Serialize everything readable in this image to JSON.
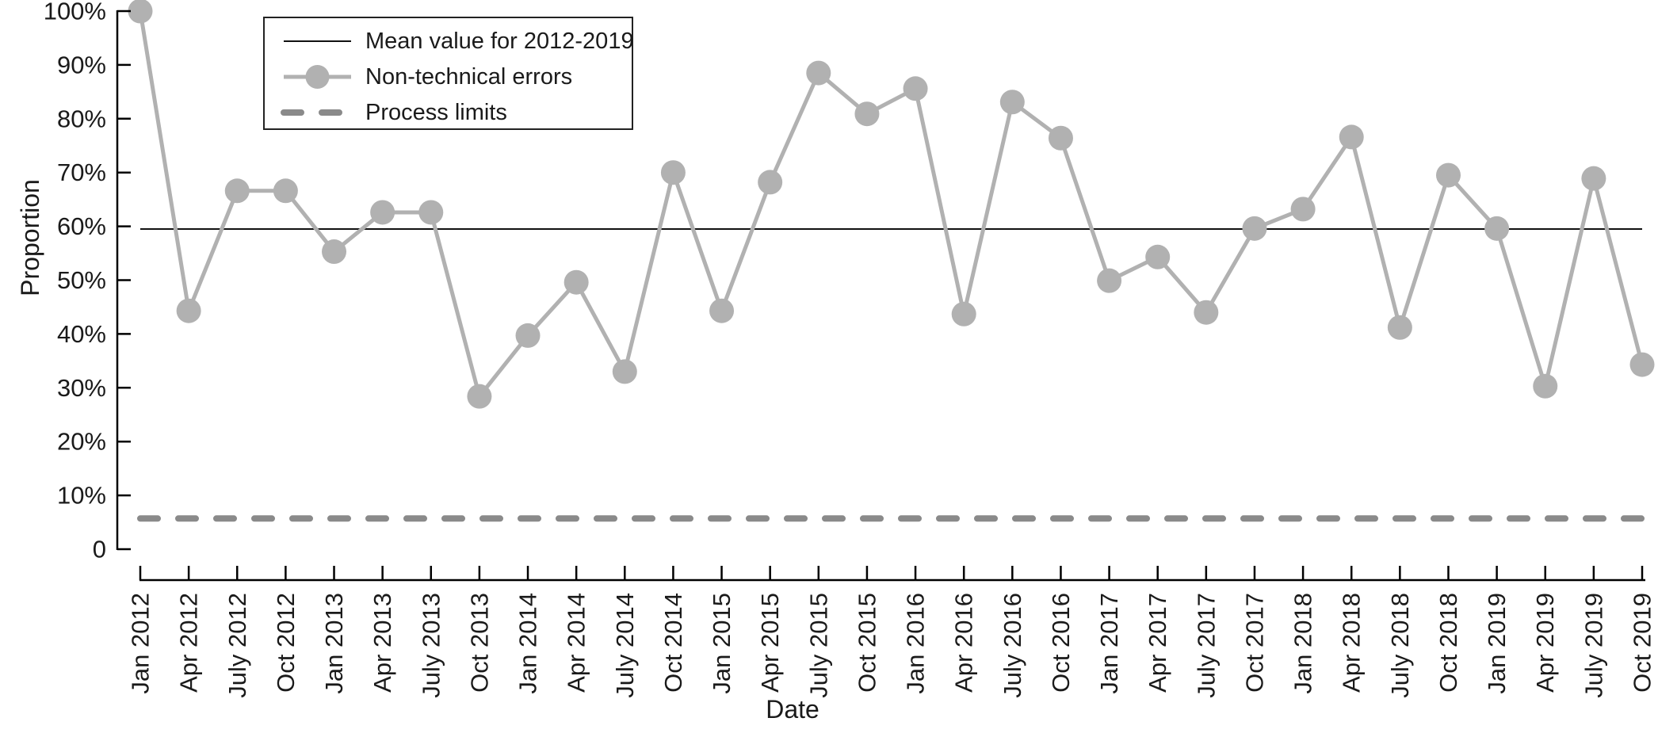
{
  "chart_data": {
    "type": "line",
    "title": "",
    "xlabel": "Date",
    "ylabel": "Proportion",
    "ylim": [
      0,
      100
    ],
    "ytick_values": [
      0,
      10,
      20,
      30,
      40,
      50,
      60,
      70,
      80,
      90,
      100
    ],
    "ytick_labels": [
      "0",
      "10%",
      "20%",
      "30%",
      "40%",
      "50%",
      "60%",
      "70%",
      "80%",
      "90%",
      "100%"
    ],
    "grid": false,
    "x": [
      "Jan 2012",
      "Apr 2012",
      "July 2012",
      "Oct 2012",
      "Jan 2013",
      "Apr 2013",
      "July 2013",
      "Oct 2013",
      "Jan 2014",
      "Apr 2014",
      "July 2014",
      "Oct 2014",
      "Jan 2015",
      "Apr 2015",
      "July 2015",
      "Oct 2015",
      "Jan 2016",
      "Apr 2016",
      "July 2016",
      "Oct 2016",
      "Jan 2017",
      "Apr 2017",
      "July 2017",
      "Oct 2017",
      "Jan 2018",
      "Apr 2018",
      "July 2018",
      "Oct 2018",
      "Jan 2019",
      "Apr 2019",
      "July 2019",
      "Oct 2019"
    ],
    "series": [
      {
        "name": "Mean value for 2012-2019",
        "kind": "constant-line",
        "value": 59.5
      },
      {
        "name": "Non-technical errors",
        "kind": "line-with-markers",
        "values": [
          100,
          44.3,
          66.6,
          66.6,
          55.3,
          62.6,
          62.6,
          28.4,
          39.7,
          49.6,
          33.0,
          70.0,
          44.3,
          68.2,
          88.5,
          80.9,
          85.6,
          43.7,
          83.1,
          76.4,
          49.9,
          54.3,
          44.0,
          59.6,
          63.2,
          76.6,
          41.2,
          69.5,
          59.6,
          30.3,
          68.9,
          34.3
        ]
      },
      {
        "name": "Process limits",
        "kind": "constant-dashed-line",
        "value": 5.7
      }
    ],
    "legend": {
      "position": "upper-left",
      "entries": [
        "Mean value for 2012-2019",
        "Non-technical errors",
        "Process limits"
      ]
    }
  },
  "colors": {
    "series_line": "#b1b1b1",
    "series_marker": "#b1b1b1",
    "process_limits": "#8a8a8a",
    "mean_line": "#111111",
    "axis": "#000000",
    "text": "#1a1a1a",
    "legend_border": "#222222",
    "background": "#ffffff"
  }
}
